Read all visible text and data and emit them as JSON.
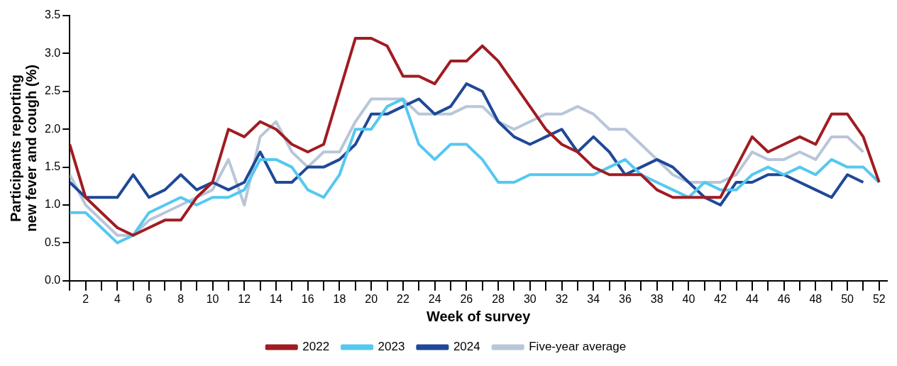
{
  "chart_data": {
    "type": "line",
    "xlabel": "Week of survey",
    "ylabel": "Participants reporting\nnew fever and cough (%)",
    "x": [
      1,
      2,
      3,
      4,
      5,
      6,
      7,
      8,
      9,
      10,
      11,
      12,
      13,
      14,
      15,
      16,
      17,
      18,
      19,
      20,
      21,
      22,
      23,
      24,
      25,
      26,
      27,
      28,
      29,
      30,
      31,
      32,
      33,
      34,
      35,
      36,
      37,
      38,
      39,
      40,
      41,
      42,
      43,
      44,
      45,
      46,
      47,
      48,
      49,
      50,
      51,
      52
    ],
    "series": [
      {
        "name": "2022",
        "color": "#a01c22",
        "values": [
          1.8,
          1.1,
          0.9,
          0.7,
          0.6,
          0.7,
          0.8,
          0.8,
          1.1,
          1.3,
          2.0,
          1.9,
          2.1,
          2.0,
          1.8,
          1.7,
          1.8,
          2.5,
          3.2,
          3.2,
          3.1,
          2.7,
          2.7,
          2.6,
          2.9,
          2.9,
          3.1,
          2.9,
          2.6,
          2.3,
          2.0,
          1.8,
          1.7,
          1.5,
          1.4,
          1.4,
          1.4,
          1.2,
          1.1,
          1.1,
          1.1,
          1.1,
          1.5,
          1.9,
          1.7,
          1.8,
          1.9,
          1.8,
          2.2,
          2.2,
          1.9,
          1.3
        ]
      },
      {
        "name": "2023",
        "color": "#55c8f0",
        "values": [
          0.9,
          0.9,
          0.7,
          0.5,
          0.6,
          0.9,
          1.0,
          1.1,
          1.0,
          1.1,
          1.1,
          1.2,
          1.6,
          1.6,
          1.5,
          1.2,
          1.1,
          1.4,
          2.0,
          2.0,
          2.3,
          2.4,
          1.8,
          1.6,
          1.8,
          1.8,
          1.6,
          1.3,
          1.3,
          1.4,
          1.4,
          1.4,
          1.4,
          1.4,
          1.5,
          1.6,
          1.4,
          1.3,
          1.2,
          1.1,
          1.3,
          1.2,
          1.2,
          1.4,
          1.5,
          1.4,
          1.5,
          1.4,
          1.6,
          1.5,
          1.5,
          1.3
        ]
      },
      {
        "name": "2024",
        "color": "#1f4898",
        "values": [
          1.3,
          1.1,
          1.1,
          1.1,
          1.4,
          1.1,
          1.2,
          1.4,
          1.2,
          1.3,
          1.2,
          1.3,
          1.7,
          1.3,
          1.3,
          1.5,
          1.5,
          1.6,
          1.8,
          2.2,
          2.2,
          2.3,
          2.4,
          2.2,
          2.3,
          2.6,
          2.5,
          2.1,
          1.9,
          1.8,
          1.9,
          2.0,
          1.7,
          1.9,
          1.7,
          1.4,
          1.5,
          1.6,
          1.5,
          1.3,
          1.1,
          1.0,
          1.3,
          1.3,
          1.4,
          1.4,
          1.3,
          1.2,
          1.1,
          1.4,
          1.3,
          null
        ]
      },
      {
        "name": "Five-year average",
        "color": "#b8c6d8",
        "values": [
          1.4,
          1.0,
          0.8,
          0.6,
          0.6,
          0.8,
          0.9,
          1.0,
          1.1,
          1.2,
          1.6,
          1.0,
          1.9,
          2.1,
          1.7,
          1.5,
          1.7,
          1.7,
          2.1,
          2.4,
          2.4,
          2.4,
          2.2,
          2.2,
          2.2,
          2.3,
          2.3,
          2.1,
          2.0,
          2.1,
          2.2,
          2.2,
          2.3,
          2.2,
          2.0,
          2.0,
          1.8,
          1.6,
          1.4,
          1.3,
          1.3,
          1.3,
          1.4,
          1.7,
          1.6,
          1.6,
          1.7,
          1.6,
          1.9,
          1.9,
          1.7,
          null
        ]
      }
    ],
    "xlim": [
      1,
      52.5
    ],
    "xticks": [
      {
        "value": 1,
        "label": null
      },
      2,
      {
        "value": 3,
        "label": null
      },
      4,
      {
        "value": 5,
        "label": null
      },
      6,
      {
        "value": 7,
        "label": null
      },
      8,
      {
        "value": 9,
        "label": null
      },
      10,
      {
        "value": 11,
        "label": null
      },
      12,
      {
        "value": 13,
        "label": null
      },
      14,
      {
        "value": 15,
        "label": null
      },
      16,
      {
        "value": 17,
        "label": null
      },
      18,
      {
        "value": 19,
        "label": null
      },
      20,
      {
        "value": 21,
        "label": null
      },
      22,
      {
        "value": 23,
        "label": null
      },
      24,
      {
        "value": 25,
        "label": null
      },
      26,
      {
        "value": 27,
        "label": null
      },
      28,
      {
        "value": 29,
        "label": null
      },
      30,
      {
        "value": 31,
        "label": null
      },
      32,
      {
        "value": 33,
        "label": null
      },
      34,
      {
        "value": 35,
        "label": null
      },
      36,
      {
        "value": 37,
        "label": null
      },
      38,
      {
        "value": 39,
        "label": null
      },
      40,
      {
        "value": 41,
        "label": null
      },
      42,
      {
        "value": 43,
        "label": null
      },
      44,
      {
        "value": 45,
        "label": null
      },
      46,
      {
        "value": 47,
        "label": null
      },
      48,
      {
        "value": 49,
        "label": null
      },
      50,
      {
        "value": 51,
        "label": null
      },
      52
    ],
    "ylim": [
      0,
      3.5
    ],
    "yticks": [
      {
        "value": 0,
        "label": "0.0"
      },
      {
        "value": 0.5,
        "label": "0.5"
      },
      {
        "value": 1,
        "label": "1.0"
      },
      {
        "value": 1.5,
        "label": "1.5"
      },
      {
        "value": 2,
        "label": "2.0"
      },
      {
        "value": 2.5,
        "label": "2.5"
      },
      {
        "value": 3,
        "label": "3.0"
      },
      {
        "value": 3.5,
        "label": "3.5"
      }
    ],
    "grid": false,
    "legend": "bottom",
    "marker": "none",
    "line_style": "solid"
  }
}
